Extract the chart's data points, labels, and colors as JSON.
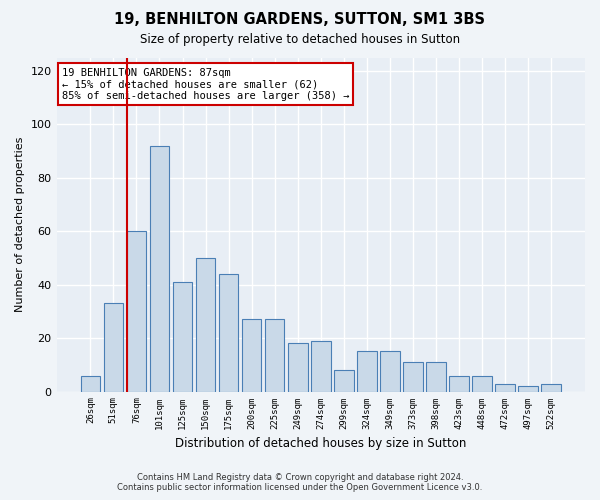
{
  "title": "19, BENHILTON GARDENS, SUTTON, SM1 3BS",
  "subtitle": "Size of property relative to detached houses in Sutton",
  "xlabel": "Distribution of detached houses by size in Sutton",
  "ylabel": "Number of detached properties",
  "footer1": "Contains HM Land Registry data © Crown copyright and database right 2024.",
  "footer2": "Contains public sector information licensed under the Open Government Licence v3.0.",
  "bar_labels": [
    "26sqm",
    "51sqm",
    "76sqm",
    "101sqm",
    "125sqm",
    "150sqm",
    "175sqm",
    "200sqm",
    "225sqm",
    "249sqm",
    "274sqm",
    "299sqm",
    "324sqm",
    "349sqm",
    "373sqm",
    "398sqm",
    "423sqm",
    "448sqm",
    "472sqm",
    "497sqm",
    "522sqm"
  ],
  "bar_values": [
    6,
    33,
    60,
    92,
    41,
    50,
    44,
    27,
    27,
    18,
    19,
    8,
    15,
    15,
    11,
    11,
    6,
    6,
    3,
    2,
    3
  ],
  "bar_color": "#c9d9e8",
  "bar_edge_color": "#4a7fb5",
  "plot_bg_color": "#e8eef5",
  "fig_bg_color": "#f0f4f8",
  "grid_color": "#ffffff",
  "vline_color": "#cc0000",
  "vline_x": 1.575,
  "annotation_line1": "19 BENHILTON GARDENS: 87sqm",
  "annotation_line2": "← 15% of detached houses are smaller (62)",
  "annotation_line3": "85% of semi-detached houses are larger (358) →",
  "annotation_box_facecolor": "#ffffff",
  "annotation_box_edgecolor": "#cc0000",
  "ylim": [
    0,
    125
  ],
  "yticks": [
    0,
    20,
    40,
    60,
    80,
    100,
    120
  ]
}
